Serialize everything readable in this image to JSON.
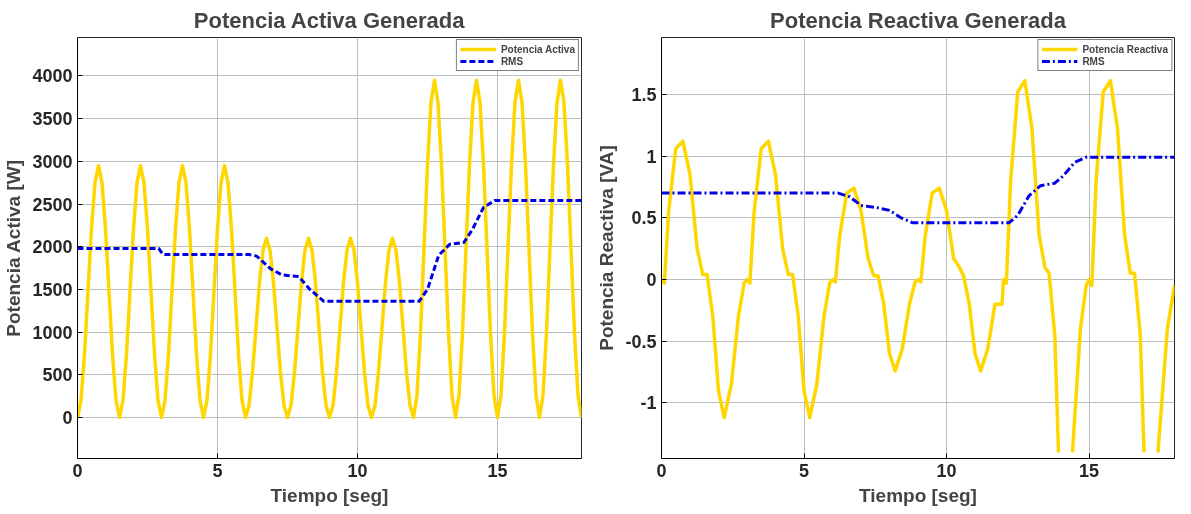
{
  "chart_data": [
    {
      "type": "line",
      "title": "Potencia Activa Generada",
      "xlabel": "Tiempo [seg]",
      "ylabel": "Potencia Activa [W]",
      "xlim": [
        0,
        18
      ],
      "xticks": [
        0,
        5,
        10,
        15
      ],
      "ylim": [
        -480,
        4450
      ],
      "yticks": [
        0,
        500,
        1000,
        1500,
        2000,
        2500,
        3000,
        3500,
        4000
      ],
      "grid": true,
      "legend": "top right",
      "series": [
        {
          "name": "Potencia Activa",
          "color": "#ffd700",
          "line_style": "solid",
          "x": [
            0,
            0.125,
            0.25,
            0.375,
            0.5,
            0.625,
            0.75,
            0.875,
            1,
            1.125,
            1.25,
            1.375,
            1.5,
            1.625,
            1.75,
            1.875,
            2,
            2.125,
            2.25,
            2.375,
            2.5,
            2.625,
            2.75,
            2.875,
            3,
            3.125,
            3.25,
            3.375,
            3.5,
            3.625,
            3.75,
            3.875,
            4,
            4.125,
            4.25,
            4.375,
            4.5,
            4.625,
            4.75,
            4.875,
            5,
            5.125,
            5.25,
            5.375,
            5.5,
            5.625,
            5.75,
            5.875,
            6,
            6.125,
            6.25,
            6.375,
            6.5,
            6.625,
            6.75,
            6.875,
            7,
            7.125,
            7.25,
            7.375,
            7.5,
            7.625,
            7.75,
            7.875,
            8,
            8.125,
            8.25,
            8.375,
            8.5,
            8.625,
            8.75,
            8.875,
            9,
            9.125,
            9.25,
            9.375,
            9.5,
            9.625,
            9.75,
            9.875,
            10,
            10.125,
            10.25,
            10.375,
            10.5,
            10.625,
            10.75,
            10.875,
            11,
            11.125,
            11.25,
            11.375,
            11.5,
            11.625,
            11.75,
            11.875,
            12,
            12.125,
            12.25,
            12.375,
            12.5,
            12.625,
            12.75,
            12.875,
            13,
            13.125,
            13.25,
            13.375,
            13.5,
            13.625,
            13.75,
            13.875,
            14,
            14.125,
            14.25,
            14.375,
            14.5,
            14.625,
            14.75,
            14.875,
            15,
            15.125,
            15.25,
            15.375,
            15.5,
            15.625,
            15.75,
            15.875,
            16,
            16.125,
            16.25,
            16.375,
            16.5,
            16.625,
            16.75,
            16.875,
            17,
            17.125,
            17.25,
            17.375,
            17.5,
            17.625,
            17.75,
            17.875,
            18
          ],
          "values": [
            0,
            200,
            740,
            1480,
            2210,
            2750,
            2950,
            2750,
            2210,
            1480,
            740,
            200,
            0,
            200,
            740,
            1480,
            2210,
            2750,
            2950,
            2750,
            2210,
            1480,
            740,
            200,
            0,
            200,
            740,
            1480,
            2210,
            2750,
            2950,
            2750,
            2210,
            1480,
            740,
            200,
            0,
            200,
            740,
            1480,
            2210,
            2750,
            2950,
            2750,
            2210,
            1480,
            740,
            200,
            0,
            140,
            530,
            1050,
            1580,
            1960,
            2100,
            1960,
            1580,
            1050,
            530,
            140,
            0,
            140,
            530,
            1050,
            1580,
            1960,
            2100,
            1960,
            1580,
            1050,
            530,
            140,
            0,
            140,
            530,
            1050,
            1580,
            1960,
            2100,
            1960,
            1580,
            1050,
            530,
            140,
            0,
            140,
            530,
            1050,
            1580,
            1960,
            2100,
            1960,
            1580,
            1050,
            530,
            140,
            0,
            260,
            990,
            1980,
            2960,
            3690,
            3950,
            3690,
            2960,
            1980,
            990,
            260,
            0,
            260,
            990,
            1980,
            2960,
            3690,
            3950,
            3690,
            2960,
            1980,
            990,
            260,
            0,
            260,
            990,
            1980,
            2960,
            3690,
            3950,
            3690,
            2960,
            1980,
            990,
            260,
            0,
            260,
            990,
            1980,
            2960,
            3690,
            3950,
            3690,
            2960,
            1980,
            990,
            260,
            0
          ]
        },
        {
          "name": "RMS",
          "color": "#0000e6",
          "line_style": "dashed",
          "x": [
            0,
            2.9,
            3.05,
            6.1,
            6.4,
            6.9,
            7.3,
            7.9,
            8.3,
            8.8,
            12.2,
            12.5,
            12.9,
            13.3,
            13.8,
            14.1,
            14.5,
            14.9,
            18
          ],
          "values": [
            1980,
            1980,
            1910,
            1910,
            1890,
            1740,
            1670,
            1650,
            1500,
            1360,
            1360,
            1500,
            1900,
            2030,
            2050,
            2200,
            2460,
            2540,
            2540
          ]
        }
      ]
    },
    {
      "type": "line",
      "title": "Potencia Reactiva Generada",
      "xlabel": "Tiempo [seg]",
      "ylabel": "Potencia Reactiva [VA]",
      "xlim": [
        0,
        18
      ],
      "xticks": [
        0,
        5,
        10,
        15
      ],
      "ylim": [
        -1.45,
        1.96
      ],
      "yticks": [
        -1,
        -0.5,
        0,
        0.5,
        1,
        1.5
      ],
      "grid": true,
      "legend": "top right",
      "series": [
        {
          "name": "Potencia Reactiva",
          "color": "#ffd700",
          "line_style": "solid",
          "x": [
            0,
            0.1,
            0.25,
            0.5,
            0.75,
            1.0,
            1.25,
            1.45,
            1.6,
            1.8,
            2.0,
            2.2,
            2.45,
            2.7,
            2.9,
            3,
            3.1,
            3.25,
            3.5,
            3.75,
            4.0,
            4.25,
            4.45,
            4.6,
            4.8,
            5.0,
            5.2,
            5.45,
            5.7,
            5.9,
            6,
            6.1,
            6.25,
            6.5,
            6.75,
            7.0,
            7.25,
            7.45,
            7.6,
            7.8,
            8.0,
            8.2,
            8.45,
            8.7,
            8.9,
            9,
            9.1,
            9.25,
            9.5,
            9.75,
            10.0,
            10.25,
            10.45,
            10.6,
            10.8,
            11.0,
            11.2,
            11.45,
            11.7,
            11.95,
            12,
            12.1,
            12.25,
            12.5,
            12.75,
            13.0,
            13.25,
            13.45,
            13.6,
            13.8,
            13.93,
            14.2,
            14.42,
            14.7,
            14.9,
            15,
            15.1,
            15.25,
            15.5,
            15.75,
            16.0,
            16.25,
            16.45,
            16.6,
            16.8,
            16.93,
            17.2,
            17.42,
            17.75,
            18
          ],
          "values": [
            0,
            -0.03,
            0.55,
            1.06,
            1.12,
            0.85,
            0.25,
            0.04,
            0.04,
            -0.3,
            -0.9,
            -1.12,
            -0.85,
            -0.3,
            -0.03,
            0,
            -0.03,
            0.55,
            1.06,
            1.12,
            0.85,
            0.25,
            0.04,
            0.04,
            -0.3,
            -0.9,
            -1.12,
            -0.85,
            -0.3,
            -0.03,
            0,
            -0.02,
            0.35,
            0.7,
            0.74,
            0.56,
            0.17,
            0.03,
            0.03,
            -0.2,
            -0.6,
            -0.74,
            -0.56,
            -0.2,
            -0.02,
            0,
            -0.02,
            0.35,
            0.7,
            0.74,
            0.56,
            0.17,
            0.1,
            0.03,
            -0.2,
            -0.6,
            -0.74,
            -0.56,
            -0.2,
            -0.2,
            0,
            -0.03,
            0.8,
            1.52,
            1.61,
            1.22,
            0.36,
            0.1,
            0.05,
            -0.45,
            -1.4,
            null,
            -1.4,
            -0.4,
            -0.05,
            0,
            -0.05,
            0.8,
            1.52,
            1.61,
            1.22,
            0.36,
            0.05,
            0.05,
            -0.45,
            -1.4,
            null,
            -1.4,
            -0.4,
            -0.05
          ]
        },
        {
          "name": "RMS",
          "color": "#0000e6",
          "line_style": "dashdot",
          "x": [
            0,
            6.2,
            6.6,
            7.0,
            7.6,
            8.0,
            8.4,
            8.8,
            12.2,
            12.5,
            12.9,
            13.3,
            13.8,
            14.1,
            14.5,
            14.9,
            18
          ],
          "values": [
            0.7,
            0.7,
            0.67,
            0.6,
            0.58,
            0.56,
            0.5,
            0.46,
            0.46,
            0.52,
            0.68,
            0.76,
            0.78,
            0.84,
            0.95,
            0.99,
            0.99
          ]
        }
      ]
    }
  ]
}
